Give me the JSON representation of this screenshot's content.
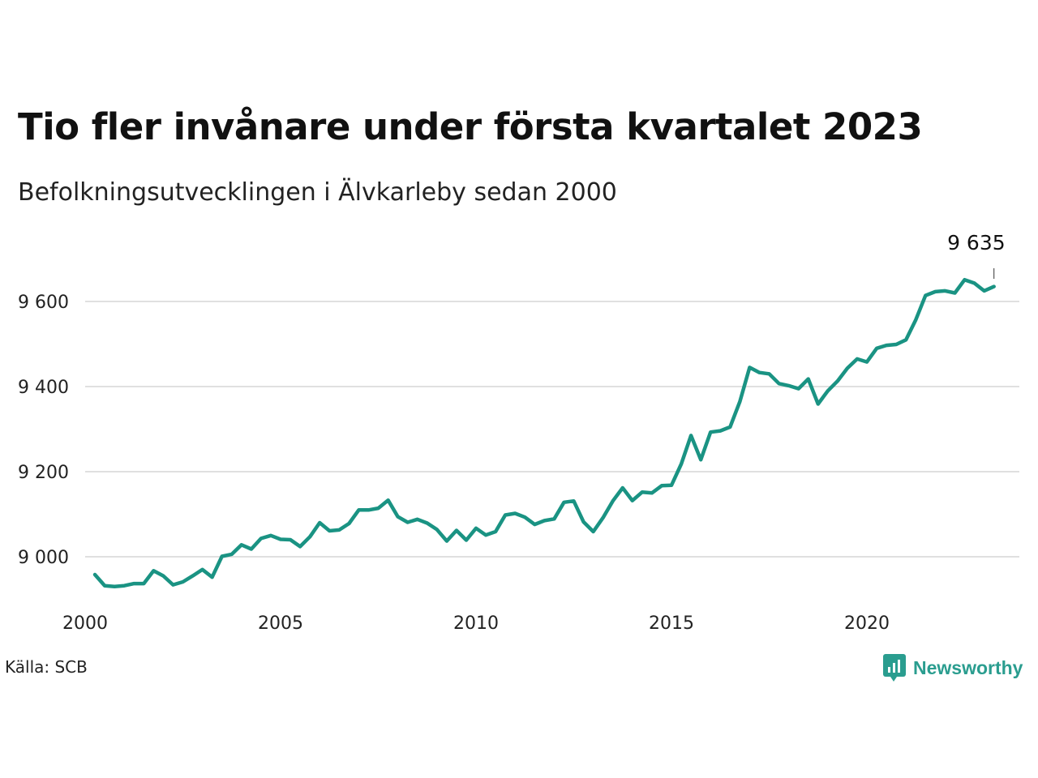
{
  "title": "Tio fler invånare under första kvartalet 2023",
  "subtitle": "Befolkningsutvecklingen i Älvkarleby sedan 2000",
  "source": "Källa: SCB",
  "brand": {
    "name": "Newsworthy",
    "color": "#2a9d8f",
    "icon": "newsworthy-logo-icon"
  },
  "chart_data": {
    "type": "line",
    "title": "Tio fler invånare under första kvartalet 2023",
    "subtitle": "Befolkningsutvecklingen i Älvkarleby sedan 2000",
    "x_ticks": [
      2000,
      2005,
      2010,
      2015,
      2020
    ],
    "y_ticks": [
      9000,
      9200,
      9400,
      9600
    ],
    "y_tick_labels": [
      "9 000",
      "9 200",
      "9 400",
      "9 600"
    ],
    "x_tick_labels": [
      "2000",
      "2005",
      "2010",
      "2015",
      "2020"
    ],
    "xlim": [
      2000,
      2023.25
    ],
    "ylim": [
      8905,
      9660
    ],
    "grid": true,
    "line_color": "#1a9383",
    "annotation": {
      "label": "9 635",
      "x": 2023.25,
      "y": 9635
    },
    "series": [
      {
        "x": [
          2000.25,
          2000.5,
          2000.75,
          2001,
          2001.25,
          2001.5,
          2001.75,
          2002,
          2002.25,
          2002.5,
          2002.75,
          2003,
          2003.25,
          2003.5,
          2003.75,
          2004,
          2004.25,
          2004.5,
          2004.75,
          2005,
          2005.25,
          2005.5,
          2005.75,
          2006,
          2006.25,
          2006.5,
          2006.75,
          2007,
          2007.25,
          2007.5,
          2007.75,
          2008,
          2008.25,
          2008.5,
          2008.75,
          2009,
          2009.25,
          2009.5,
          2009.75,
          2010,
          2010.25,
          2010.5,
          2010.75,
          2011,
          2011.25,
          2011.5,
          2011.75,
          2012,
          2012.25,
          2012.5,
          2012.75,
          2013,
          2013.25,
          2013.5,
          2013.75,
          2014,
          2014.25,
          2014.5,
          2014.75,
          2015,
          2015.25,
          2015.5,
          2015.75,
          2016,
          2016.25,
          2016.5,
          2016.75,
          2017,
          2017.25,
          2017.5,
          2017.75,
          2018,
          2018.25,
          2018.5,
          2018.75,
          2019,
          2019.25,
          2019.5,
          2019.75,
          2020,
          2020.25,
          2020.5,
          2020.75,
          2021,
          2021.25,
          2021.5,
          2021.75,
          2022,
          2022.25,
          2022.5,
          2022.75,
          2023,
          2023.25
        ],
        "values": [
          8958,
          8932,
          8930,
          8932,
          8937,
          8937,
          8967,
          8955,
          8934,
          8941,
          8955,
          8970,
          8952,
          9001,
          9006,
          9028,
          9018,
          9043,
          9050,
          9041,
          9040,
          9024,
          9047,
          9080,
          9061,
          9063,
          9078,
          9110,
          9110,
          9114,
          9133,
          9094,
          9081,
          9088,
          9079,
          9064,
          9037,
          9062,
          9039,
          9067,
          9051,
          9059,
          9098,
          9102,
          9093,
          9076,
          9085,
          9089,
          9128,
          9131,
          9082,
          9059,
          9092,
          9131,
          9162,
          9132,
          9152,
          9150,
          9167,
          9168,
          9218,
          9285,
          9228,
          9293,
          9296,
          9305,
          9365,
          9445,
          9433,
          9430,
          9407,
          9402,
          9395,
          9418,
          9359,
          9390,
          9413,
          9443,
          9465,
          9458,
          9490,
          9497,
          9499,
          9510,
          9557,
          9614,
          9623,
          9625,
          9620,
          9651,
          9643,
          9625,
          9635
        ]
      }
    ]
  }
}
